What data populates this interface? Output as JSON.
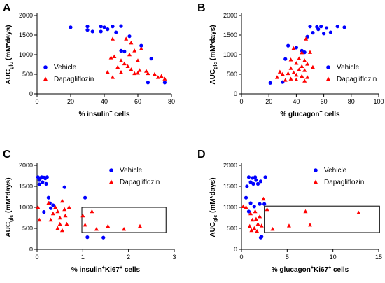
{
  "colors": {
    "vehicle": "#0000ff",
    "dapagliflozin": "#ff0000"
  },
  "chart_data": [
    {
      "panel": "A",
      "type": "scatter",
      "xlabel": "% insulin",
      "xlabel_sup": "+",
      "xlabel_tail": " cells",
      "ylabel": "AUC",
      "ylabel_sub": "glc",
      "ylabel_tail": " (mM*days)",
      "xlim": [
        0,
        80
      ],
      "ylim": [
        0,
        2000
      ],
      "xticks": [
        0,
        20,
        40,
        60,
        80
      ],
      "yticks": [
        0,
        500,
        1000,
        1500,
        2000
      ],
      "legend": {
        "position": "bottom-left",
        "items": [
          "Vehicle",
          "Dapagliflozin"
        ]
      },
      "series": [
        {
          "name": "Vehicle",
          "marker": "circle",
          "color": "#0000ff",
          "points": [
            [
              20,
              1700
            ],
            [
              30,
              1720
            ],
            [
              30,
              1630
            ],
            [
              33,
              1590
            ],
            [
              38,
              1720
            ],
            [
              38,
              1590
            ],
            [
              40,
              1700
            ],
            [
              42,
              1650
            ],
            [
              45,
              1720
            ],
            [
              47,
              1570
            ],
            [
              50,
              1730
            ],
            [
              55,
              1470
            ],
            [
              62,
              1230
            ],
            [
              50,
              1100
            ],
            [
              52,
              1080
            ],
            [
              68,
              900
            ],
            [
              66,
              290
            ],
            [
              76,
              290
            ]
          ]
        },
        {
          "name": "Dapagliflozin",
          "marker": "triangle",
          "color": "#ff0000",
          "points": [
            [
              45,
              1400
            ],
            [
              53,
              1400
            ],
            [
              56,
              1300
            ],
            [
              62,
              1150
            ],
            [
              58,
              1100
            ],
            [
              55,
              1000
            ],
            [
              46,
              950
            ],
            [
              44,
              920
            ],
            [
              50,
              850
            ],
            [
              60,
              850
            ],
            [
              52,
              770
            ],
            [
              54,
              700
            ],
            [
              48,
              680
            ],
            [
              56,
              620
            ],
            [
              61,
              600
            ],
            [
              65,
              580
            ],
            [
              50,
              550
            ],
            [
              58,
              520
            ],
            [
              60,
              530
            ],
            [
              66,
              520
            ],
            [
              70,
              500
            ],
            [
              72,
              420
            ],
            [
              74,
              450
            ],
            [
              76,
              380
            ],
            [
              42,
              550
            ],
            [
              45,
              420
            ]
          ]
        }
      ]
    },
    {
      "panel": "B",
      "type": "scatter",
      "xlabel": "% glucagon",
      "xlabel_sup": "+",
      "xlabel_tail": " cells",
      "ylabel": "AUC",
      "ylabel_sub": "glc",
      "ylabel_tail": " (mM*days)",
      "xlim": [
        0,
        100
      ],
      "ylim": [
        0,
        2000
      ],
      "xticks": [
        0,
        20,
        40,
        60,
        80,
        100
      ],
      "yticks": [
        0,
        500,
        1000,
        1500,
        2000
      ],
      "legend": {
        "position": "bottom-right",
        "items": [
          "Vehicle",
          "Dapagliflozin"
        ]
      },
      "series": [
        {
          "name": "Vehicle",
          "marker": "circle",
          "color": "#0000ff",
          "points": [
            [
              50,
              1720
            ],
            [
              55,
              1710
            ],
            [
              58,
              1720
            ],
            [
              62,
              1680
            ],
            [
              65,
              1570
            ],
            [
              70,
              1720
            ],
            [
              75,
              1700
            ],
            [
              52,
              1560
            ],
            [
              56,
              1650
            ],
            [
              48,
              1460
            ],
            [
              60,
              1540
            ],
            [
              34,
              1230
            ],
            [
              40,
              1180
            ],
            [
              44,
              1100
            ],
            [
              46,
              1060
            ],
            [
              32,
              890
            ],
            [
              30,
              300
            ],
            [
              21,
              280
            ]
          ]
        },
        {
          "name": "Dapagliflozin",
          "marker": "triangle",
          "color": "#ff0000",
          "points": [
            [
              47,
              1400
            ],
            [
              38,
              1160
            ],
            [
              44,
              1050
            ],
            [
              50,
              1060
            ],
            [
              42,
              900
            ],
            [
              36,
              870
            ],
            [
              46,
              850
            ],
            [
              40,
              780
            ],
            [
              48,
              760
            ],
            [
              44,
              700
            ],
            [
              52,
              680
            ],
            [
              36,
              650
            ],
            [
              42,
              620
            ],
            [
              46,
              600
            ],
            [
              28,
              560
            ],
            [
              30,
              500
            ],
            [
              34,
              520
            ],
            [
              38,
              540
            ],
            [
              40,
              480
            ],
            [
              44,
              450
            ],
            [
              48,
              420
            ],
            [
              26,
              420
            ],
            [
              32,
              350
            ],
            [
              36,
              380
            ],
            [
              40,
              360
            ],
            [
              46,
              330
            ]
          ]
        }
      ]
    },
    {
      "panel": "C",
      "type": "scatter",
      "xlabel": "% insulin",
      "xlabel_sup": "+",
      "xlabel_mid": "Ki67",
      "xlabel_sup2": "+",
      "xlabel_tail": " cells",
      "ylabel": "AUC",
      "ylabel_sub": "glc",
      "ylabel_tail": " (mM*days)",
      "xlim": [
        0,
        3
      ],
      "ylim": [
        0,
        2000
      ],
      "xticks": [
        0,
        1,
        2,
        3
      ],
      "yticks": [
        0,
        500,
        1000,
        1500,
        2000
      ],
      "legend": {
        "position": "top-right",
        "items": [
          "Vehicle",
          "Dapagliflozin"
        ]
      },
      "box": {
        "x0": 0.98,
        "x1": 2.82,
        "y0": 400,
        "y1": 1000
      },
      "series": [
        {
          "name": "Vehicle",
          "marker": "circle",
          "color": "#0000ff",
          "points": [
            [
              0.02,
              1720
            ],
            [
              0.05,
              1650
            ],
            [
              0.08,
              1700
            ],
            [
              0.1,
              1720
            ],
            [
              0.12,
              1600
            ],
            [
              0.15,
              1710
            ],
            [
              0.18,
              1690
            ],
            [
              0.2,
              1560
            ],
            [
              0.22,
              1720
            ],
            [
              0.05,
              1550
            ],
            [
              0.25,
              1230
            ],
            [
              0.28,
              1100
            ],
            [
              0.35,
              1050
            ],
            [
              0.3,
              980
            ],
            [
              0.6,
              1480
            ],
            [
              0.15,
              890
            ],
            [
              1.05,
              1230
            ],
            [
              1.1,
              290
            ],
            [
              1.45,
              280
            ]
          ]
        },
        {
          "name": "Dapagliflozin",
          "marker": "triangle",
          "color": "#ff0000",
          "points": [
            [
              0.02,
              1000
            ],
            [
              0.05,
              700
            ],
            [
              0.25,
              1100
            ],
            [
              0.35,
              850
            ],
            [
              0.4,
              1000
            ],
            [
              0.45,
              900
            ],
            [
              0.5,
              750
            ],
            [
              0.55,
              1150
            ],
            [
              0.6,
              950
            ],
            [
              0.62,
              800
            ],
            [
              0.5,
              600
            ],
            [
              0.45,
              500
            ],
            [
              0.55,
              450
            ],
            [
              0.65,
              600
            ],
            [
              0.7,
              1000
            ],
            [
              0.3,
              700
            ],
            [
              1.0,
              800
            ],
            [
              1.2,
              900
            ],
            [
              1.3,
              480
            ],
            [
              1.55,
              550
            ],
            [
              1.9,
              480
            ],
            [
              2.25,
              550
            ],
            [
              1.05,
              580
            ]
          ]
        }
      ]
    },
    {
      "panel": "D",
      "type": "scatter",
      "xlabel": "% glucagon",
      "xlabel_sup": "+",
      "xlabel_mid": "Ki67",
      "xlabel_sup2": "+",
      "xlabel_tail": " cells",
      "ylabel": "AUC",
      "ylabel_sub": "glc",
      "ylabel_tail": " (mM*days)",
      "xlim": [
        0,
        15
      ],
      "ylim": [
        0,
        2000
      ],
      "xticks": [
        0,
        5,
        10,
        15
      ],
      "yticks": [
        0,
        500,
        1000,
        1500,
        2000
      ],
      "legend": {
        "position": "top-right",
        "items": [
          "Vehicle",
          "Dapagliflozin"
        ]
      },
      "box": {
        "x0": 2.5,
        "x1": 15.1,
        "y0": 400,
        "y1": 1030
      },
      "series": [
        {
          "name": "Vehicle",
          "marker": "circle",
          "color": "#0000ff",
          "points": [
            [
              0.8,
              1720
            ],
            [
              1.0,
              1600
            ],
            [
              1.2,
              1700
            ],
            [
              1.3,
              1560
            ],
            [
              1.5,
              1720
            ],
            [
              0.6,
              1500
            ],
            [
              1.6,
              1650
            ],
            [
              2.1,
              1620
            ],
            [
              2.6,
              1720
            ],
            [
              1.8,
              1560
            ],
            [
              0.5,
              1230
            ],
            [
              1.0,
              1100
            ],
            [
              1.4,
              1020
            ],
            [
              2.0,
              1080
            ],
            [
              2.5,
              1080
            ],
            [
              0.8,
              900
            ],
            [
              2.2,
              300
            ],
            [
              2.1,
              280
            ]
          ]
        },
        {
          "name": "Dapagliflozin",
          "marker": "triangle",
          "color": "#ff0000",
          "points": [
            [
              0.2,
              1020
            ],
            [
              0.5,
              1000
            ],
            [
              1.0,
              850
            ],
            [
              1.5,
              900
            ],
            [
              1.2,
              700
            ],
            [
              1.6,
              720
            ],
            [
              2.0,
              780
            ],
            [
              1.8,
              600
            ],
            [
              2.2,
              560
            ],
            [
              1.4,
              500
            ],
            [
              0.9,
              550
            ],
            [
              1.1,
              450
            ],
            [
              2.4,
              1200
            ],
            [
              2.8,
              950
            ],
            [
              3.4,
              480
            ],
            [
              5.2,
              560
            ],
            [
              7.0,
              900
            ],
            [
              7.5,
              580
            ],
            [
              12.8,
              870
            ],
            [
              1.7,
              430
            ]
          ]
        }
      ]
    }
  ]
}
